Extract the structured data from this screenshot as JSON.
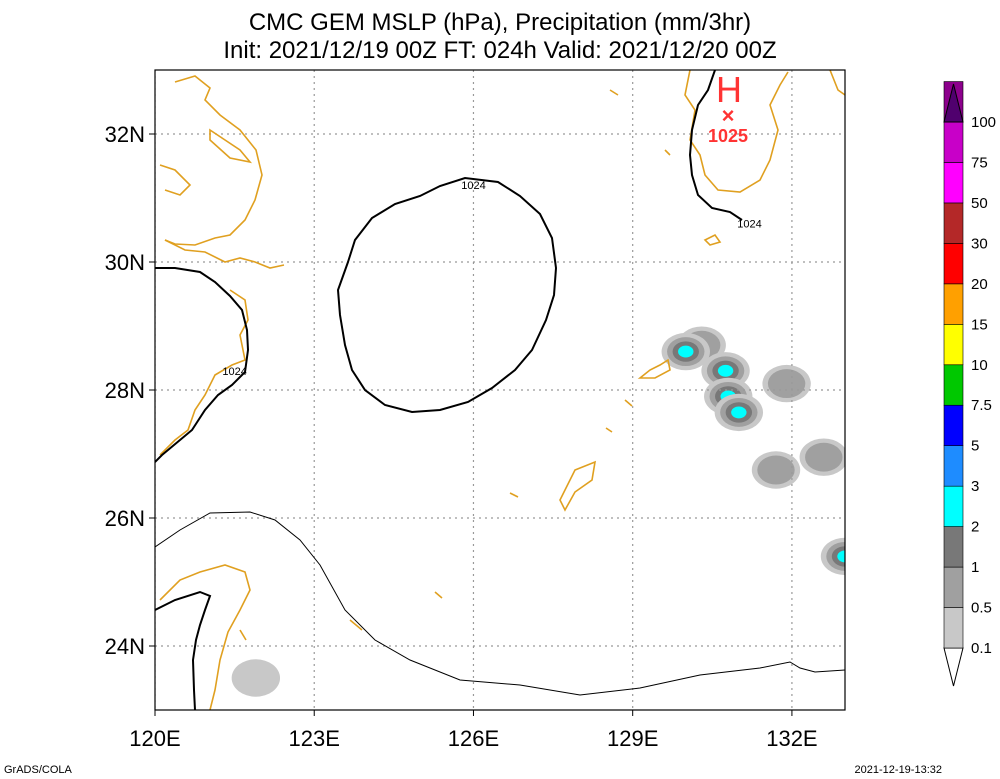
{
  "title_line1": "CMC GEM MSLP (hPa), Precipitation (mm/3hr)",
  "title_line2": "Init: 2021/12/19 00Z  FT: 024h  Valid: 2021/12/20 00Z",
  "footer_left": "GrADS/COLA",
  "footer_right": "2021-12-19-13:32",
  "high_center": {
    "letter": "H",
    "marker": "×",
    "value": "1025",
    "color": "#ff3333"
  },
  "chart_data": {
    "type": "heatmap",
    "x_ticks": [
      "120E",
      "123E",
      "126E",
      "129E",
      "132E"
    ],
    "y_ticks": [
      "32N",
      "30N",
      "28N",
      "26N",
      "24N"
    ],
    "xlim": [
      120,
      133
    ],
    "ylim": [
      23,
      33
    ],
    "grid": true,
    "contour_labels": [
      {
        "text": "1024",
        "lon": 126.0,
        "lat": 31.2
      },
      {
        "text": "1024",
        "lon": 131.2,
        "lat": 30.6
      },
      {
        "text": "1024",
        "lon": 121.5,
        "lat": 28.3
      }
    ],
    "colorbar": {
      "labels": [
        "0.1",
        "0.5",
        "1",
        "2",
        "3",
        "5",
        "7.5",
        "10",
        "15",
        "20",
        "30",
        "50",
        "75",
        "100"
      ],
      "colors": [
        "#c8c8c8",
        "#a0a0a0",
        "#787878",
        "#00ffff",
        "#1e8cff",
        "#0000ff",
        "#00c800",
        "#ffff00",
        "#ffa000",
        "#ff0000",
        "#b42828",
        "#ff00ff",
        "#c800c8",
        "#8c008c",
        "#50006e"
      ]
    },
    "precip_cells": [
      {
        "lon": 130.3,
        "lat": 28.7,
        "level": 1
      },
      {
        "lon": 130.0,
        "lat": 28.6,
        "level": 3
      },
      {
        "lon": 130.75,
        "lat": 28.3,
        "level": 3
      },
      {
        "lon": 130.8,
        "lat": 27.9,
        "level": 3
      },
      {
        "lon": 131.0,
        "lat": 27.65,
        "level": 4
      },
      {
        "lon": 131.9,
        "lat": 28.1,
        "level": 1
      },
      {
        "lon": 132.6,
        "lat": 26.95,
        "level": 1
      },
      {
        "lon": 131.7,
        "lat": 26.75,
        "level": 1
      },
      {
        "lon": 133.0,
        "lat": 25.4,
        "level": 3
      },
      {
        "lon": 121.9,
        "lat": 23.5,
        "level": 0
      }
    ]
  }
}
